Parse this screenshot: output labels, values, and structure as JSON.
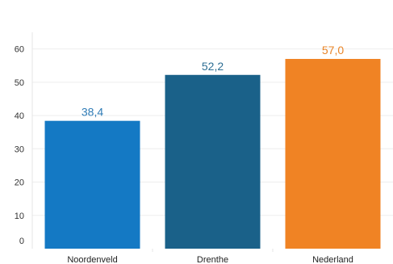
{
  "chart_data": {
    "type": "bar",
    "categories": [
      "Noordenveld",
      "Drenthe",
      "Nederland"
    ],
    "values": [
      38.4,
      52.2,
      57.0
    ],
    "value_labels": [
      "38,4",
      "52,2",
      "57,0"
    ],
    "colors": [
      "#1479c4",
      "#1a6189",
      "#f08324"
    ],
    "label_colors": [
      "#2e7bb6",
      "#2e6f94",
      "#e98427"
    ],
    "ylim": [
      0,
      65
    ],
    "yticks": [
      0,
      10,
      20,
      30,
      40,
      50,
      60
    ],
    "grid": true,
    "legend": "none",
    "title": "",
    "xlabel": "",
    "ylabel": ""
  }
}
